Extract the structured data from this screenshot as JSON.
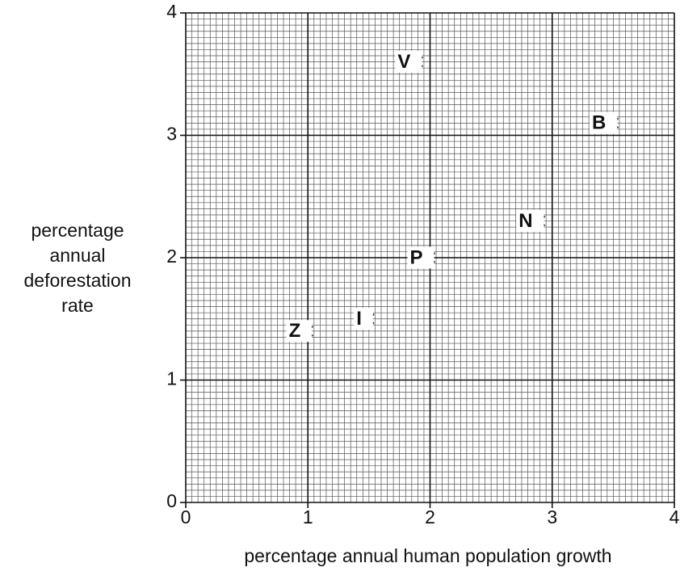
{
  "chart_data": {
    "type": "scatter",
    "xlabel": "percentage annual human population growth",
    "ylabel": [
      "percentage",
      "annual",
      "deforestation",
      "rate"
    ],
    "xlim": [
      0,
      4
    ],
    "ylim": [
      0,
      4
    ],
    "xticks": [
      0,
      1,
      2,
      3,
      4
    ],
    "yticks": [
      0,
      1,
      2,
      3,
      4
    ],
    "grid": true,
    "minor_grid_step": 0.05,
    "color": "#111111",
    "series": [
      {
        "labels": [
          "V",
          "B",
          "N",
          "P",
          "I",
          "Z"
        ],
        "x": [
          1.9,
          3.5,
          2.9,
          2.0,
          1.5,
          1.0
        ],
        "values": [
          3.6,
          3.1,
          2.3,
          2.0,
          1.5,
          1.4
        ]
      }
    ]
  }
}
